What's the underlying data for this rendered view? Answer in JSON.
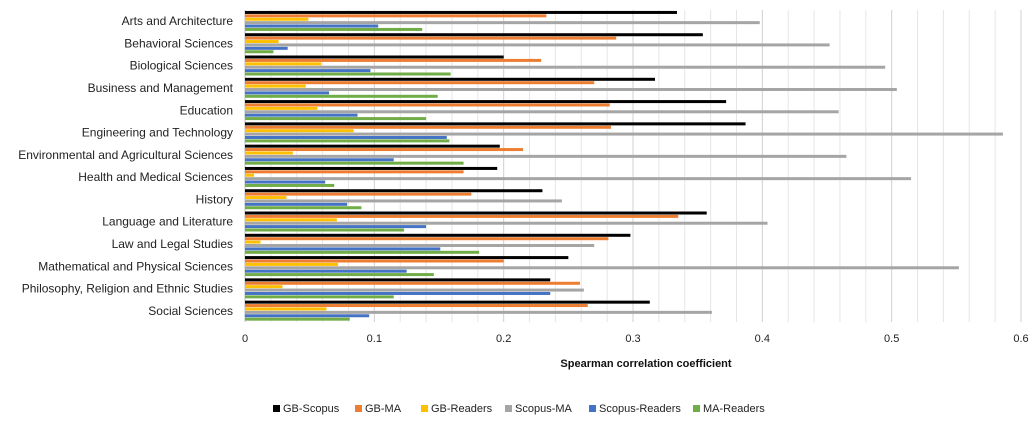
{
  "chart_data": {
    "type": "bar",
    "orientation": "horizontal",
    "title": "",
    "xlabel": "Spearman correlation coefficient",
    "ylabel": "",
    "xlim": [
      0,
      0.6
    ],
    "xticks": [
      "0",
      "0.1",
      "0.2",
      "0.3",
      "0.4",
      "0.5",
      "0.6"
    ],
    "grid": true,
    "legend_position": "bottom",
    "categories": [
      "Arts and Architecture",
      "Behavioral Sciences",
      "Biological Sciences",
      "Business and Management",
      "Education",
      "Engineering and Technology",
      "Environmental and Agricultural Sciences",
      "Health and Medical Sciences",
      "History",
      "Language and Literature",
      "Law and Legal Studies",
      "Mathematical and Physical Sciences",
      "Philosophy, Religion and Ethnic Studies",
      "Social Sciences"
    ],
    "series": [
      {
        "name": "GB-Scopus",
        "color": "#000000",
        "values": [
          0.334,
          0.354,
          0.2,
          0.317,
          0.372,
          0.387,
          0.197,
          0.195,
          0.23,
          0.357,
          0.298,
          0.25,
          0.236,
          0.313
        ]
      },
      {
        "name": "GB-MA",
        "color": "#ed7d31",
        "values": [
          0.233,
          0.287,
          0.229,
          0.27,
          0.282,
          0.283,
          0.215,
          0.169,
          0.175,
          0.335,
          0.281,
          0.2,
          0.259,
          0.265
        ]
      },
      {
        "name": "GB-Readers",
        "color": "#ffc000",
        "values": [
          0.049,
          0.026,
          0.059,
          0.047,
          0.056,
          0.084,
          0.037,
          0.007,
          0.032,
          0.071,
          0.012,
          0.072,
          0.029,
          0.063
        ]
      },
      {
        "name": "Scopus-MA",
        "color": "#a5a5a5",
        "values": [
          0.398,
          0.452,
          0.495,
          0.504,
          0.459,
          0.586,
          0.465,
          0.515,
          0.245,
          0.404,
          0.27,
          0.552,
          0.262,
          0.361
        ]
      },
      {
        "name": "Scopus-Readers",
        "color": "#4472c4",
        "values": [
          0.103,
          0.033,
          0.097,
          0.065,
          0.087,
          0.156,
          0.115,
          0.062,
          0.079,
          0.14,
          0.151,
          0.125,
          0.236,
          0.096
        ]
      },
      {
        "name": "MA-Readers",
        "color": "#70ad47",
        "values": [
          0.137,
          0.022,
          0.159,
          0.149,
          0.14,
          0.158,
          0.169,
          0.069,
          0.09,
          0.123,
          0.181,
          0.146,
          0.115,
          0.081
        ]
      }
    ]
  }
}
